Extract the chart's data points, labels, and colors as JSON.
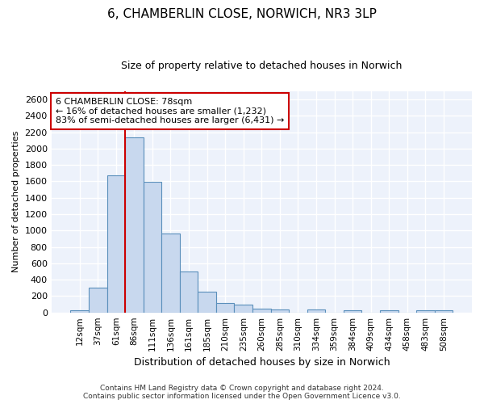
{
  "title": "6, CHAMBERLIN CLOSE, NORWICH, NR3 3LP",
  "subtitle": "Size of property relative to detached houses in Norwich",
  "xlabel": "Distribution of detached houses by size in Norwich",
  "ylabel": "Number of detached properties",
  "categories": [
    "12sqm",
    "37sqm",
    "61sqm",
    "86sqm",
    "111sqm",
    "136sqm",
    "161sqm",
    "185sqm",
    "210sqm",
    "235sqm",
    "260sqm",
    "285sqm",
    "310sqm",
    "334sqm",
    "359sqm",
    "384sqm",
    "409sqm",
    "434sqm",
    "458sqm",
    "483sqm",
    "508sqm"
  ],
  "values": [
    25,
    300,
    1670,
    2140,
    1590,
    960,
    500,
    250,
    120,
    100,
    50,
    35,
    0,
    35,
    0,
    25,
    0,
    25,
    0,
    25,
    25
  ],
  "bar_color": "#c8d8ee",
  "bar_edge_color": "#5a8fbb",
  "vline_color": "#cc0000",
  "vline_x_index": 3,
  "annotation_line1": "6 CHAMBERLIN CLOSE: 78sqm",
  "annotation_line2": "← 16% of detached houses are smaller (1,232)",
  "annotation_line3": "83% of semi-detached houses are larger (6,431) →",
  "annotation_box_color": "#ffffff",
  "annotation_box_edge_color": "#cc0000",
  "footer_line1": "Contains HM Land Registry data © Crown copyright and database right 2024.",
  "footer_line2": "Contains public sector information licensed under the Open Government Licence v3.0.",
  "bg_color": "#edf2fb",
  "grid_color": "#ffffff",
  "fig_bg_color": "#ffffff",
  "ylim": [
    0,
    2700
  ],
  "yticks": [
    0,
    200,
    400,
    600,
    800,
    1000,
    1200,
    1400,
    1600,
    1800,
    2000,
    2200,
    2400,
    2600
  ],
  "title_fontsize": 11,
  "subtitle_fontsize": 9,
  "ylabel_fontsize": 8,
  "xlabel_fontsize": 9,
  "tick_fontsize": 8,
  "xtick_fontsize": 7.5,
  "footer_fontsize": 6.5,
  "annot_fontsize": 8
}
